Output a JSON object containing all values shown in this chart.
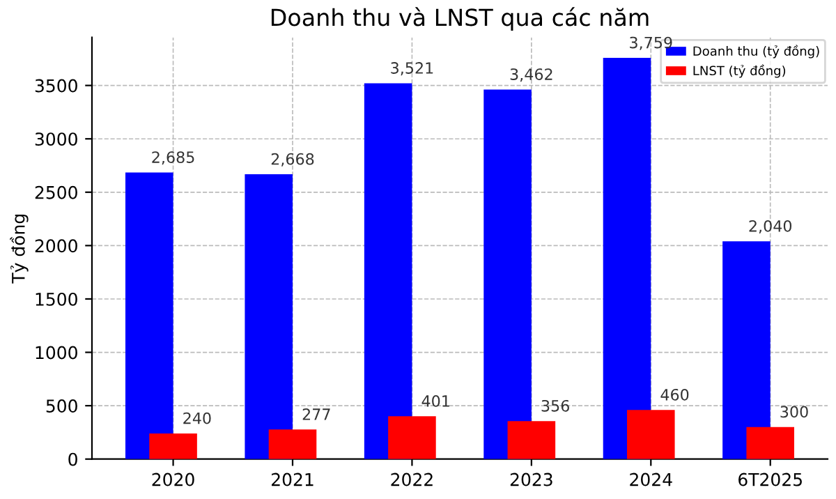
{
  "chart_data": {
    "type": "bar",
    "title": "Doanh thu và LNST qua các năm",
    "ylabel": "Tỷ đồng",
    "categories": [
      "2020",
      "2021",
      "2022",
      "2023",
      "2024",
      "6T2025"
    ],
    "series": [
      {
        "name": "Doanh thu (tỷ đồng)",
        "color": "#0000ff",
        "values": [
          2685,
          2668,
          3521,
          3462,
          3759,
          2040
        ],
        "value_labels": [
          "2,685",
          "2,668",
          "3,521",
          "3,462",
          "3,759",
          "2,040"
        ]
      },
      {
        "name": "LNST (tỷ đồng)",
        "color": "#ff0000",
        "values": [
          240,
          277,
          401,
          356,
          460,
          300
        ],
        "value_labels": [
          "240",
          "277",
          "401",
          "356",
          "460",
          "300"
        ]
      }
    ],
    "ylim": [
      0,
      3950
    ],
    "yticks": [
      0,
      500,
      1000,
      1500,
      2000,
      2500,
      3000,
      3500
    ],
    "grid": true,
    "legend": "top right"
  }
}
